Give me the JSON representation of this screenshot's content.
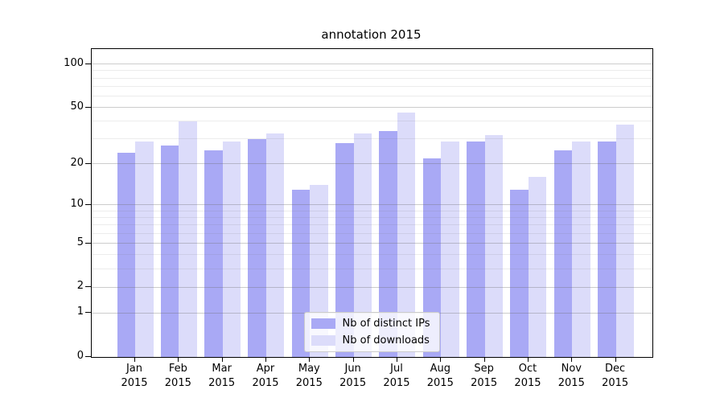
{
  "chart_data": {
    "type": "bar",
    "title": "annotation 2015",
    "categories": [
      "Jan",
      "Feb",
      "Mar",
      "Apr",
      "May",
      "Jun",
      "Jul",
      "Aug",
      "Sep",
      "Oct",
      "Nov",
      "Dec"
    ],
    "category_year": "2015",
    "series": [
      {
        "name": "Nb of distinct IPs",
        "color": "#a9a9f5",
        "values": [
          24,
          27,
          25,
          30,
          13,
          28,
          34,
          22,
          29,
          13,
          25,
          29
        ]
      },
      {
        "name": "Nb of downloads",
        "color": "#dcdcfa",
        "values": [
          29,
          40,
          29,
          33,
          14,
          33,
          46,
          29,
          32,
          16,
          29,
          38
        ]
      }
    ],
    "yscale": "log10(value+1)",
    "yticks": [
      0,
      1,
      2,
      5,
      10,
      20,
      50,
      100
    ],
    "minor_yticks": [
      3,
      4,
      6,
      7,
      8,
      9,
      30,
      40,
      60,
      70,
      80,
      90
    ],
    "ylim": [
      0,
      127
    ],
    "xlabel": "",
    "ylabel": "",
    "grid": true,
    "legend_position": "lower center",
    "axis_color": "#000000",
    "background_color": "#ffffff"
  }
}
